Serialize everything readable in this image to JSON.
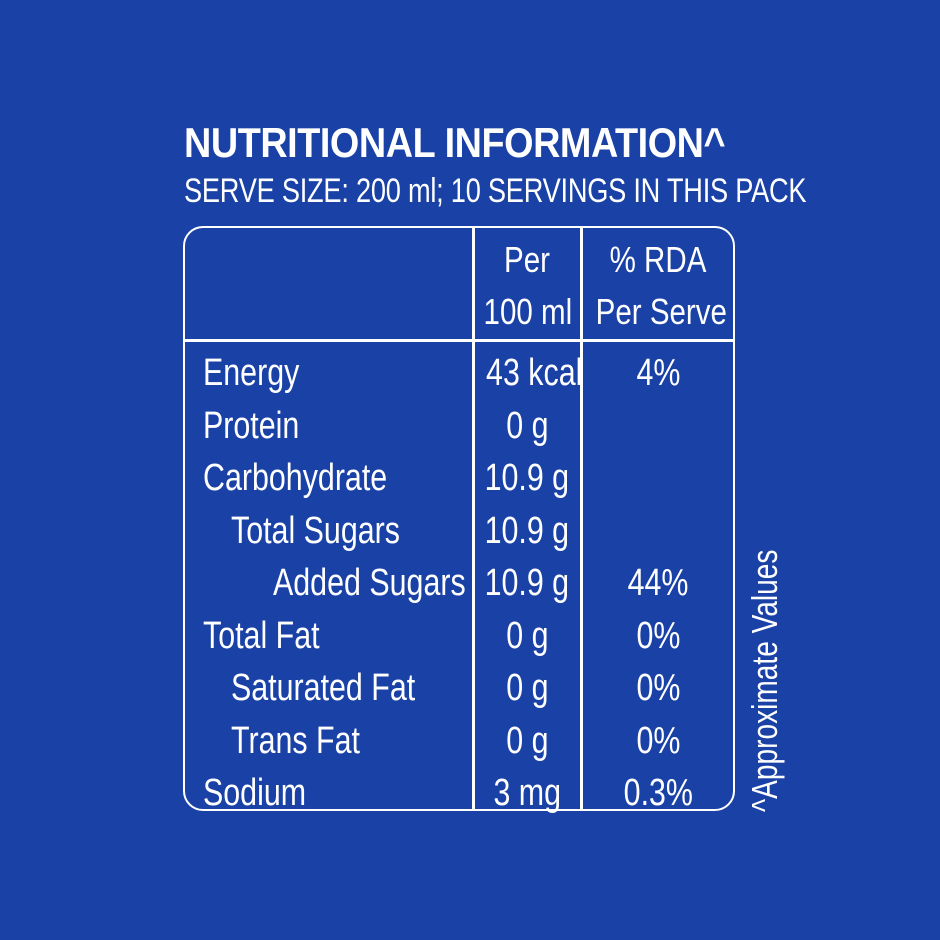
{
  "title": "NUTRITIONAL INFORMATION^",
  "serve_size": "SERVE SIZE: 200 ml; 10 SERVINGS IN THIS PACK",
  "table": {
    "headers": {
      "per_line1": "Per",
      "per_line2": "100 ml",
      "rda_line1": "% RDA",
      "rda_line2": "Per Serve"
    },
    "rows": [
      {
        "nutrient": "Energy",
        "per_100ml": "43 kcal",
        "rda": "4%",
        "indent": 0
      },
      {
        "nutrient": "Protein",
        "per_100ml": "0 g",
        "rda": "",
        "indent": 0
      },
      {
        "nutrient": "Carbohydrate",
        "per_100ml": "10.9 g",
        "rda": "",
        "indent": 0
      },
      {
        "nutrient": "Total Sugars",
        "per_100ml": "10.9 g",
        "rda": "",
        "indent": 1
      },
      {
        "nutrient": "Added Sugars",
        "per_100ml": "10.9 g",
        "rda": "44%",
        "indent": 2
      },
      {
        "nutrient": "Total Fat",
        "per_100ml": "0 g",
        "rda": "0%",
        "indent": 0
      },
      {
        "nutrient": "Saturated Fat",
        "per_100ml": "0 g",
        "rda": "0%",
        "indent": 1
      },
      {
        "nutrient": "Trans Fat",
        "per_100ml": "0 g",
        "rda": "0%",
        "indent": 1
      },
      {
        "nutrient": "Sodium",
        "per_100ml": "3 mg",
        "rda": "0.3%",
        "indent": 0
      }
    ]
  },
  "footnote": "^Approximate Values",
  "colors": {
    "background": "#1941A6",
    "text": "#FFFFFF"
  }
}
